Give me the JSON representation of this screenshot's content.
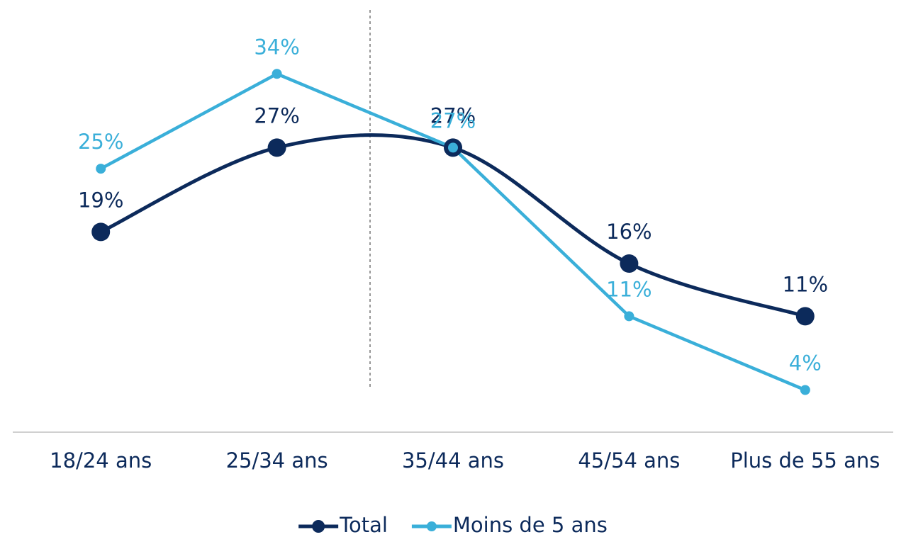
{
  "chart_data": {
    "type": "line",
    "categories": [
      "18/24 ans",
      "25/34 ans",
      "35/44 ans",
      "45/54 ans",
      "Plus de 55 ans"
    ],
    "series": [
      {
        "name": "Total",
        "color": "#0c2a5b",
        "smooth": true,
        "values": [
          19,
          27,
          27,
          16,
          11
        ],
        "value_labels": [
          "19%",
          "27%",
          "27%",
          "16%",
          "11%"
        ]
      },
      {
        "name": "Moins de 5 ans",
        "color": "#3aafd9",
        "smooth": false,
        "values": [
          25,
          34,
          27,
          11,
          4
        ],
        "value_labels": [
          "25%",
          "34%",
          "27%",
          "11%",
          "4%"
        ]
      }
    ],
    "ylim": [
      0,
      40
    ],
    "legend": "bottom"
  }
}
